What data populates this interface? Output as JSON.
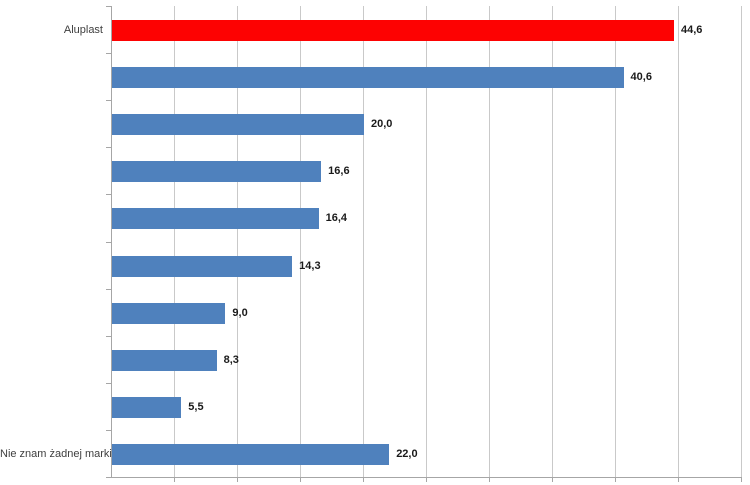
{
  "chart_data": {
    "type": "bar",
    "orientation": "horizontal",
    "title": "",
    "categories": [
      "Aluplast",
      "",
      "",
      "",
      "",
      "",
      "",
      "",
      "",
      "Nie znam żadnej marki"
    ],
    "values": [
      44.6,
      40.6,
      20.0,
      16.6,
      16.4,
      14.3,
      9.0,
      8.3,
      5.5,
      22.0
    ],
    "value_labels": [
      "44,6",
      "40,6",
      "20,0",
      "16,6",
      "16,4",
      "14,3",
      "9,0",
      "8,3",
      "5,5",
      "22,0"
    ],
    "highlight_index": 0,
    "xlim": [
      0,
      50
    ],
    "gridline_interval": 5,
    "grid": true,
    "legend": false,
    "xlabel": "",
    "ylabel": ""
  },
  "colors": {
    "bar": "#4f81bd",
    "highlight": "#fd0202",
    "gridline": "#c9c9c9",
    "axis": "#a6a6a6",
    "category_text": "#3f3f3f",
    "value_text": "#1a1a1a"
  }
}
